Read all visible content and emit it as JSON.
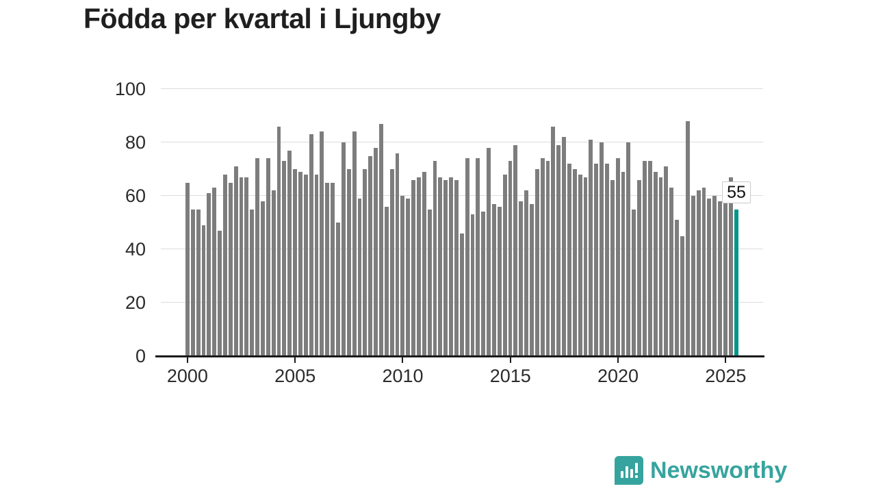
{
  "title": "Födda per kvartal i Ljungby",
  "brand": {
    "name": "Newsworthy"
  },
  "chart_data": {
    "type": "bar",
    "title": "Födda per kvartal i Ljungby",
    "xlabel": "",
    "ylabel": "",
    "start_year": 2000,
    "x_unit": "quarter",
    "ylim": [
      0,
      100
    ],
    "y_ticks": [
      0,
      20,
      40,
      60,
      80,
      100
    ],
    "x_tick_years": [
      2000,
      2005,
      2010,
      2015,
      2020,
      2025
    ],
    "values": [
      65,
      55,
      55,
      49,
      61,
      63,
      47,
      68,
      65,
      71,
      67,
      67,
      55,
      74,
      58,
      74,
      62,
      86,
      73,
      77,
      70,
      69,
      68,
      83,
      68,
      84,
      65,
      65,
      50,
      80,
      70,
      84,
      59,
      70,
      75,
      78,
      87,
      56,
      70,
      76,
      60,
      59,
      66,
      67,
      69,
      55,
      73,
      67,
      66,
      67,
      66,
      46,
      74,
      53,
      74,
      54,
      78,
      57,
      56,
      68,
      73,
      79,
      58,
      62,
      57,
      70,
      74,
      73,
      86,
      79,
      82,
      72,
      70,
      68,
      67,
      81,
      72,
      80,
      72,
      66,
      74,
      69,
      80,
      55,
      66,
      73,
      73,
      69,
      67,
      71,
      63,
      51,
      45,
      88,
      60,
      62,
      63,
      59,
      60,
      58,
      58,
      67,
      55
    ],
    "highlight_index": 102,
    "annotation": {
      "label": "55"
    },
    "colors": {
      "bar": "#7d7d7d",
      "highlight": "#00968b",
      "grid": "#dcdcdc",
      "axis": "#1a1a1a",
      "brand": "#36a49e"
    },
    "grid": true,
    "legend": false
  }
}
